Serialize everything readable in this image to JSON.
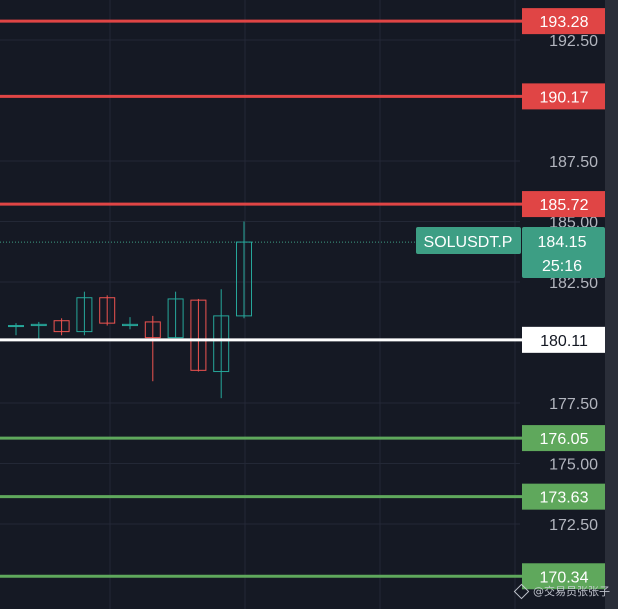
{
  "colors": {
    "background": "#151924",
    "grid": "#232836",
    "bull": "#26a69a",
    "bear": "#ef5350",
    "resistance": "#e04545",
    "support": "#5fa85c",
    "pivot": "#ffffff",
    "price_label": "#3d9e84",
    "scale_bg": "#151924"
  },
  "chart_data": {
    "type": "candlestick",
    "symbol": "SOLUSDT.P",
    "last_price": 184.15,
    "countdown": "25:16",
    "y_axis": {
      "ticks": [
        "192.50",
        "187.50",
        "185.00",
        "182.50",
        "177.50",
        "175.00",
        "172.50"
      ],
      "range": [
        169.8,
        194.0
      ]
    },
    "candles": [
      {
        "open": 180.7,
        "high": 180.8,
        "low": 180.3,
        "close": 180.7
      },
      {
        "open": 180.7,
        "high": 180.85,
        "low": 180.15,
        "close": 180.75
      },
      {
        "open": 180.9,
        "high": 181.0,
        "low": 180.3,
        "close": 180.45
      },
      {
        "open": 180.45,
        "high": 182.1,
        "low": 180.3,
        "close": 181.85
      },
      {
        "open": 181.85,
        "high": 181.95,
        "low": 180.7,
        "close": 180.8
      },
      {
        "open": 180.7,
        "high": 181.05,
        "low": 180.55,
        "close": 180.75
      },
      {
        "open": 180.85,
        "high": 181.1,
        "low": 178.4,
        "close": 180.2
      },
      {
        "open": 180.2,
        "high": 182.1,
        "low": 180.2,
        "close": 181.8
      },
      {
        "open": 181.75,
        "high": 181.8,
        "low": 178.8,
        "close": 178.85
      },
      {
        "open": 178.8,
        "high": 182.2,
        "low": 177.7,
        "close": 181.1
      },
      {
        "open": 181.1,
        "high": 185.0,
        "low": 181.0,
        "close": 184.15
      }
    ],
    "levels": [
      {
        "value": 193.28,
        "label": "193.28",
        "kind": "resistance"
      },
      {
        "value": 190.17,
        "label": "190.17",
        "kind": "resistance"
      },
      {
        "value": 185.72,
        "label": "185.72",
        "kind": "resistance"
      },
      {
        "value": 180.11,
        "label": "180.11",
        "kind": "pivot"
      },
      {
        "value": 176.05,
        "label": "176.05",
        "kind": "support"
      },
      {
        "value": 173.63,
        "label": "173.63",
        "kind": "support"
      },
      {
        "value": 170.34,
        "label": "170.34",
        "kind": "support"
      }
    ]
  },
  "watermark": "@交易员张张子"
}
